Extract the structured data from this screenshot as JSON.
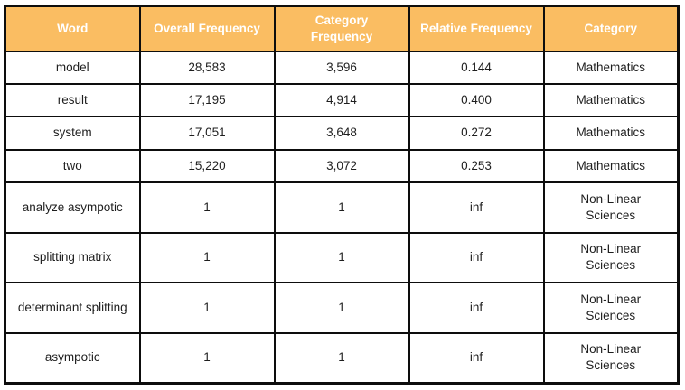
{
  "table": {
    "columns": [
      "Word",
      "Overall Frequency",
      "Category Frequency",
      "Relative Frequency",
      "Category"
    ],
    "rows": [
      [
        "model",
        "28,583",
        "3,596",
        "0.144",
        "Mathematics"
      ],
      [
        "result",
        "17,195",
        "4,914",
        "0.400",
        "Mathematics"
      ],
      [
        "system",
        "17,051",
        "3,648",
        "0.272",
        "Mathematics"
      ],
      [
        "two",
        "15,220",
        "3,072",
        "0.253",
        "Mathematics"
      ],
      [
        "analyze asympotic",
        "1",
        "1",
        "inf",
        "Non-Linear Sciences"
      ],
      [
        "splitting matrix",
        "1",
        "1",
        "inf",
        "Non-Linear Sciences"
      ],
      [
        "determinant splitting",
        "1",
        "1",
        "inf",
        "Non-Linear Sciences"
      ],
      [
        "asympotic",
        "1",
        "1",
        "inf",
        "Non-Linear Sciences"
      ]
    ]
  },
  "colors": {
    "header_bg": "#FABD62",
    "header_text": "#FFFFFF",
    "body_text": "#1E1E1E",
    "border": "#0D0D0D",
    "background": "#FFFFFF"
  },
  "chart_data": {
    "type": "table",
    "title": "",
    "columns": [
      "Word",
      "Overall Frequency",
      "Category Frequency",
      "Relative Frequency",
      "Category"
    ],
    "rows": [
      {
        "word": "model",
        "overall_frequency": 28583,
        "category_frequency": 3596,
        "relative_frequency": 0.144,
        "category": "Mathematics"
      },
      {
        "word": "result",
        "overall_frequency": 17195,
        "category_frequency": 4914,
        "relative_frequency": 0.4,
        "category": "Mathematics"
      },
      {
        "word": "system",
        "overall_frequency": 17051,
        "category_frequency": 3648,
        "relative_frequency": 0.272,
        "category": "Mathematics"
      },
      {
        "word": "two",
        "overall_frequency": 15220,
        "category_frequency": 3072,
        "relative_frequency": 0.253,
        "category": "Mathematics"
      },
      {
        "word": "analyze asympotic",
        "overall_frequency": 1,
        "category_frequency": 1,
        "relative_frequency": "inf",
        "category": "Non-Linear Sciences"
      },
      {
        "word": "splitting matrix",
        "overall_frequency": 1,
        "category_frequency": 1,
        "relative_frequency": "inf",
        "category": "Non-Linear Sciences"
      },
      {
        "word": "determinant splitting",
        "overall_frequency": 1,
        "category_frequency": 1,
        "relative_frequency": "inf",
        "category": "Non-Linear Sciences"
      },
      {
        "word": "asympotic",
        "overall_frequency": 1,
        "category_frequency": 1,
        "relative_frequency": "inf",
        "category": "Non-Linear Sciences"
      }
    ],
    "layout": {
      "header_fill": "#FABD62",
      "header_text_color": "#FFFFFF",
      "grid": "black solid borders",
      "legend": "none"
    }
  }
}
